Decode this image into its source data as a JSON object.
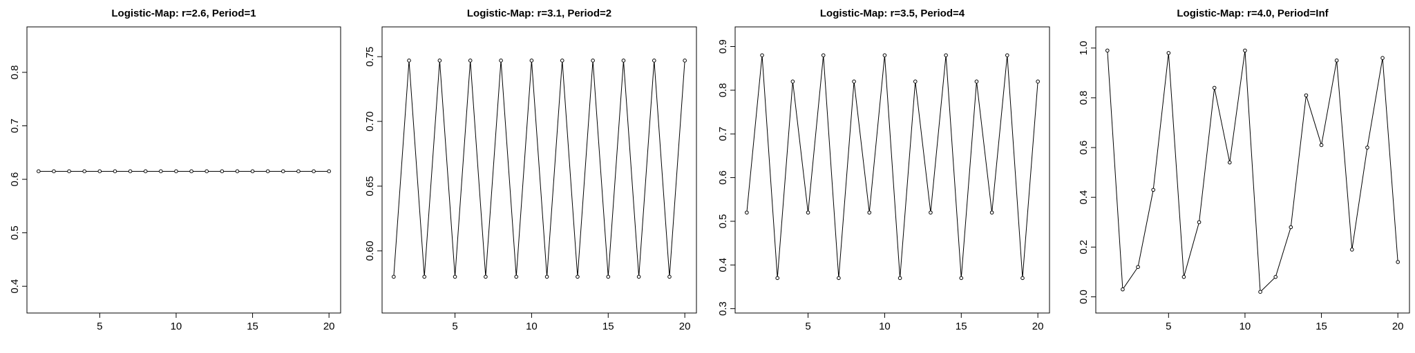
{
  "chart_data": [
    {
      "type": "line",
      "title": "Logistic-Map: r=2.6, Period=1",
      "xlabel": "",
      "ylabel": "",
      "xlim": [
        0.24,
        20.76
      ],
      "ylim": [
        0.35,
        0.885
      ],
      "xticks": [
        5,
        10,
        15,
        20
      ],
      "yticks": [
        0.4,
        0.5,
        0.6,
        0.7,
        0.8
      ],
      "x": [
        1,
        2,
        3,
        4,
        5,
        6,
        7,
        8,
        9,
        10,
        11,
        12,
        13,
        14,
        15,
        16,
        17,
        18,
        19,
        20
      ],
      "series": [
        {
          "values": [
            0.615,
            0.615,
            0.615,
            0.615,
            0.615,
            0.615,
            0.615,
            0.615,
            0.615,
            0.615,
            0.615,
            0.615,
            0.615,
            0.615,
            0.615,
            0.615,
            0.615,
            0.615,
            0.615,
            0.615
          ]
        }
      ],
      "grid": false,
      "markers": "open-circle"
    },
    {
      "type": "line",
      "title": "Logistic-Map: r=3.1, Period=2",
      "xlabel": "",
      "ylabel": "",
      "xlim": [
        0.24,
        20.76
      ],
      "ylim": [
        0.552,
        0.773
      ],
      "xticks": [
        5,
        10,
        15,
        20
      ],
      "yticks": [
        0.6,
        0.65,
        0.7,
        0.75
      ],
      "ytick_labels": [
        "0.60",
        "0.65",
        "0.70",
        "0.75"
      ],
      "x": [
        1,
        2,
        3,
        4,
        5,
        6,
        7,
        8,
        9,
        10,
        11,
        12,
        13,
        14,
        15,
        16,
        17,
        18,
        19,
        20
      ],
      "series": [
        {
          "values": [
            0.58,
            0.747,
            0.58,
            0.747,
            0.58,
            0.747,
            0.58,
            0.747,
            0.58,
            0.747,
            0.58,
            0.747,
            0.58,
            0.747,
            0.58,
            0.747,
            0.58,
            0.747,
            0.58,
            0.747
          ]
        }
      ],
      "grid": false,
      "markers": "open-circle"
    },
    {
      "type": "line",
      "title": "Logistic-Map: r=3.5, Period=4",
      "xlabel": "",
      "ylabel": "",
      "xlim": [
        0.24,
        20.76
      ],
      "ylim": [
        0.29,
        0.945
      ],
      "xticks": [
        5,
        10,
        15,
        20
      ],
      "yticks": [
        0.3,
        0.4,
        0.5,
        0.6,
        0.7,
        0.8,
        0.9
      ],
      "x": [
        1,
        2,
        3,
        4,
        5,
        6,
        7,
        8,
        9,
        10,
        11,
        12,
        13,
        14,
        15,
        16,
        17,
        18,
        19,
        20
      ],
      "series": [
        {
          "values": [
            0.52,
            0.88,
            0.37,
            0.82,
            0.52,
            0.88,
            0.37,
            0.82,
            0.52,
            0.88,
            0.37,
            0.82,
            0.52,
            0.88,
            0.37,
            0.82,
            0.52,
            0.88,
            0.37,
            0.82
          ]
        }
      ],
      "grid": false,
      "markers": "open-circle"
    },
    {
      "type": "line",
      "title": "Logistic-Map: r=4.0, Period=Inf",
      "xlabel": "",
      "ylabel": "",
      "xlim": [
        0.24,
        20.76
      ],
      "ylim": [
        -0.065,
        1.085
      ],
      "xticks": [
        5,
        10,
        15,
        20
      ],
      "yticks": [
        0.0,
        0.2,
        0.4,
        0.6,
        0.8,
        1.0
      ],
      "ytick_labels": [
        "0.0",
        "0.2",
        "0.4",
        "0.6",
        "0.8",
        "1.0"
      ],
      "x": [
        1,
        2,
        3,
        4,
        5,
        6,
        7,
        8,
        9,
        10,
        11,
        12,
        13,
        14,
        15,
        16,
        17,
        18,
        19,
        20
      ],
      "series": [
        {
          "values": [
            0.99,
            0.03,
            0.12,
            0.43,
            0.98,
            0.08,
            0.3,
            0.84,
            0.54,
            0.99,
            0.02,
            0.08,
            0.28,
            0.81,
            0.61,
            0.95,
            0.19,
            0.6,
            0.96,
            0.14
          ]
        }
      ],
      "grid": false,
      "markers": "open-circle"
    }
  ]
}
